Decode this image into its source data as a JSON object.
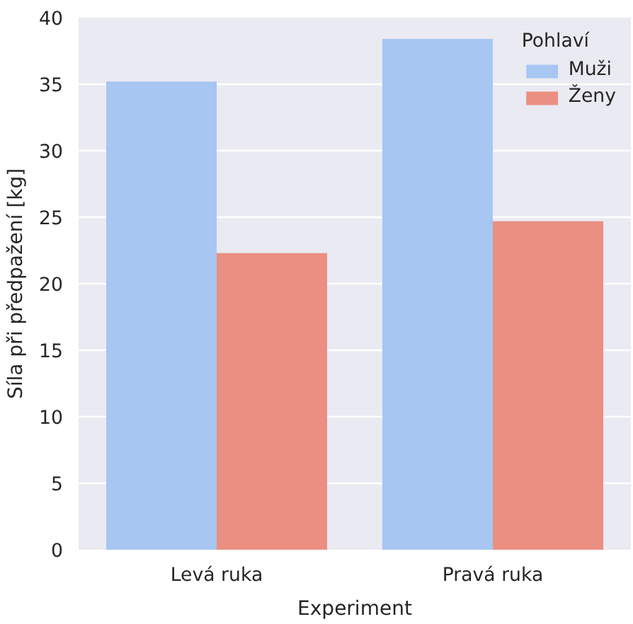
{
  "chart_data": {
    "type": "bar",
    "xlabel": "Experiment",
    "ylabel": "Síla při předpažení [kg]",
    "legend_title": "Pohlaví",
    "categories": [
      "Levá ruka",
      "Pravá ruka"
    ],
    "series": [
      {
        "name": "Muži",
        "color": "#a7c6f2",
        "values": [
          35.2,
          38.4
        ]
      },
      {
        "name": "Ženy",
        "color": "#ea8f82",
        "values": [
          22.3,
          24.7
        ]
      }
    ],
    "ylim": [
      0,
      40
    ],
    "yticks": [
      0,
      5,
      10,
      15,
      20,
      25,
      30,
      35,
      40
    ],
    "grid": "y",
    "legend": "top right"
  }
}
